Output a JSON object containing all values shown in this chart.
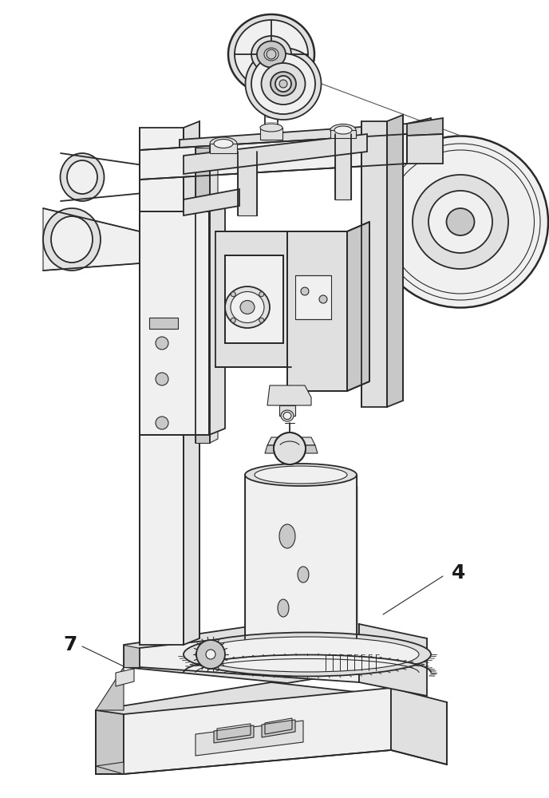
{
  "background_color": "#ffffff",
  "line_color": "#2a2a2a",
  "fill_light": "#f0f0f0",
  "fill_mid": "#e0e0e0",
  "fill_dark": "#c8c8c8",
  "fill_darker": "#b0b0b0",
  "label_7": "7",
  "label_4": "4",
  "figsize": [
    6.88,
    10.0
  ],
  "dpi": 100
}
